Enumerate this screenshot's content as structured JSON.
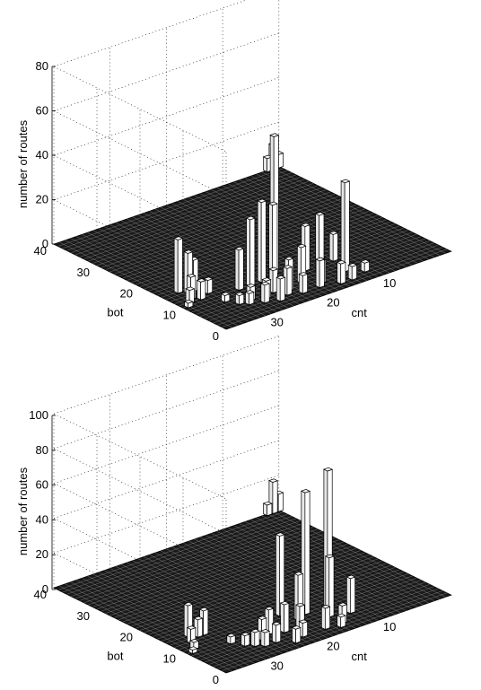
{
  "chart_data": [
    {
      "type": "bar3d",
      "zlabel": "number of routes",
      "xlabel": "cnt",
      "ylabel": "bot",
      "zlim": [
        0,
        80
      ],
      "zticks": [
        "0",
        "20",
        "40",
        "60",
        "80"
      ],
      "xticks": [
        "10",
        "20",
        "30"
      ],
      "yticks": [
        "0",
        "10",
        "20",
        "30",
        "40"
      ],
      "grid": true,
      "bars": [
        {
          "cnt": 40,
          "bot": 40,
          "value": 6
        },
        {
          "cnt": 39,
          "bot": 40,
          "value": 11
        },
        {
          "cnt": 38,
          "bot": 40,
          "value": 6
        },
        {
          "cnt": 25,
          "bot": 5,
          "value": 40
        },
        {
          "cnt": 27,
          "bot": 3,
          "value": 4
        },
        {
          "cnt": 26,
          "bot": 9,
          "value": 12
        },
        {
          "cnt": 22,
          "bot": 7,
          "value": 26
        },
        {
          "cnt": 21,
          "bot": 9,
          "value": 20
        },
        {
          "cnt": 17,
          "bot": 11,
          "value": 62
        },
        {
          "cnt": 16,
          "bot": 10,
          "value": 33
        },
        {
          "cnt": 14,
          "bot": 10,
          "value": 36
        },
        {
          "cnt": 12,
          "bot": 10,
          "value": 30
        },
        {
          "cnt": 10,
          "bot": 10,
          "value": 18
        },
        {
          "cnt": 22,
          "bot": 2,
          "value": 9
        },
        {
          "cnt": 19,
          "bot": 3,
          "value": 12
        },
        {
          "cnt": 18,
          "bot": 6,
          "value": 16
        },
        {
          "cnt": 15,
          "bot": 5,
          "value": 14
        },
        {
          "cnt": 13,
          "bot": 6,
          "value": 10
        },
        {
          "cnt": 11,
          "bot": 5,
          "value": 8
        },
        {
          "cnt": 20,
          "bot": 4,
          "value": 10
        },
        {
          "cnt": 24,
          "bot": 2,
          "value": 6
        },
        {
          "cnt": 16,
          "bot": 3,
          "value": 8
        },
        {
          "cnt": 14,
          "bot": 4,
          "value": 12
        },
        {
          "cnt": 12,
          "bot": 3,
          "value": 10
        },
        {
          "cnt": 10,
          "bot": 4,
          "value": 8
        },
        {
          "cnt": 9,
          "bot": 6,
          "value": 6
        },
        {
          "cnt": 8,
          "bot": 5,
          "value": 5
        },
        {
          "cnt": 5,
          "bot": 14,
          "value": 14
        },
        {
          "cnt": 4,
          "bot": 14,
          "value": 18
        },
        {
          "cnt": 3,
          "bot": 15,
          "value": 24
        },
        {
          "cnt": 3,
          "bot": 12,
          "value": 10
        },
        {
          "cnt": 4,
          "bot": 11,
          "value": 8
        },
        {
          "cnt": 2,
          "bot": 11,
          "value": 6
        },
        {
          "cnt": 6,
          "bot": 12,
          "value": 6
        },
        {
          "cnt": 7,
          "bot": 6,
          "value": 4
        },
        {
          "cnt": 6,
          "bot": 8,
          "value": 3
        },
        {
          "cnt": 1,
          "bot": 10,
          "value": 2
        }
      ]
    },
    {
      "type": "bar3d",
      "zlabel": "number of routes",
      "xlabel": "cnt",
      "ylabel": "bot",
      "zlim": [
        0,
        100
      ],
      "zticks": [
        "0",
        "20",
        "40",
        "60",
        "80",
        "100"
      ],
      "xticks": [
        "10",
        "20",
        "30"
      ],
      "yticks": [
        "0",
        "10",
        "20",
        "30",
        "40"
      ],
      "grid": true,
      "bars": [
        {
          "cnt": 40,
          "bot": 40,
          "value": 10
        },
        {
          "cnt": 39,
          "bot": 40,
          "value": 18
        },
        {
          "cnt": 38,
          "bot": 40,
          "value": 6
        },
        {
          "cnt": 26,
          "bot": 5,
          "value": 20
        },
        {
          "cnt": 25,
          "bot": 9,
          "value": 78
        },
        {
          "cnt": 23,
          "bot": 6,
          "value": 34
        },
        {
          "cnt": 21,
          "bot": 9,
          "value": 70
        },
        {
          "cnt": 18,
          "bot": 11,
          "value": 46
        },
        {
          "cnt": 19,
          "bot": 8,
          "value": 26
        },
        {
          "cnt": 23,
          "bot": 3,
          "value": 10
        },
        {
          "cnt": 20,
          "bot": 3,
          "value": 12
        },
        {
          "cnt": 17,
          "bot": 5,
          "value": 14
        },
        {
          "cnt": 15,
          "bot": 6,
          "value": 16
        },
        {
          "cnt": 13,
          "bot": 7,
          "value": 14
        },
        {
          "cnt": 11,
          "bot": 6,
          "value": 12
        },
        {
          "cnt": 12,
          "bot": 4,
          "value": 10
        },
        {
          "cnt": 16,
          "bot": 3,
          "value": 8
        },
        {
          "cnt": 14,
          "bot": 2,
          "value": 8
        },
        {
          "cnt": 10,
          "bot": 4,
          "value": 8
        },
        {
          "cnt": 22,
          "bot": 2,
          "value": 6
        },
        {
          "cnt": 9,
          "bot": 5,
          "value": 8
        },
        {
          "cnt": 8,
          "bot": 6,
          "value": 6
        },
        {
          "cnt": 6,
          "bot": 13,
          "value": 14
        },
        {
          "cnt": 5,
          "bot": 13,
          "value": 10
        },
        {
          "cnt": 4,
          "bot": 14,
          "value": 18
        },
        {
          "cnt": 3,
          "bot": 12,
          "value": 8
        },
        {
          "cnt": 7,
          "bot": 8,
          "value": 4
        },
        {
          "cnt": 2,
          "bot": 10,
          "value": 4
        },
        {
          "cnt": 1,
          "bot": 9,
          "value": 2
        }
      ]
    }
  ]
}
